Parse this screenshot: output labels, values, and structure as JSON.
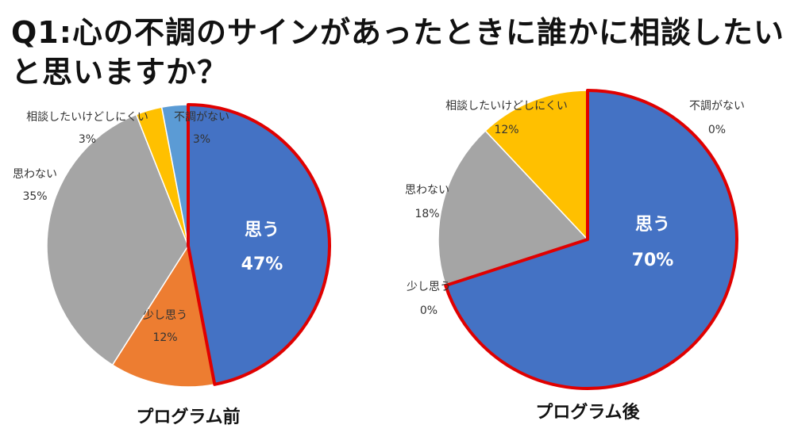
{
  "title": "Q1:心の不調のサインがあったときに誰かに相談したいと思いますか？",
  "colors": {
    "omou": "#4472C4",
    "sukoshi": "#ED7D31",
    "omowanai": "#A5A5A5",
    "soudan": "#FFC000",
    "fuchou": "#5B9BD5",
    "highlight": "#E00000"
  },
  "chart_data": [
    {
      "type": "pie",
      "title": "プログラム前",
      "slices": [
        {
          "label": "思う",
          "value": 47,
          "display": "47%",
          "color": "#4472C4",
          "highlight": true
        },
        {
          "label": "少し思う",
          "value": 12,
          "display": "12%",
          "color": "#ED7D31",
          "highlight": false
        },
        {
          "label": "思わない",
          "value": 35,
          "display": "35%",
          "color": "#A5A5A5",
          "highlight": false
        },
        {
          "label": "相談したいけどしにくい",
          "value": 3,
          "display": "3%",
          "color": "#FFC000",
          "highlight": false
        },
        {
          "label": "不調がない",
          "value": 3,
          "display": "3%",
          "color": "#5B9BD5",
          "highlight": false
        }
      ]
    },
    {
      "type": "pie",
      "title": "プログラム後",
      "slices": [
        {
          "label": "思う",
          "value": 70,
          "display": "70%",
          "color": "#4472C4",
          "highlight": true
        },
        {
          "label": "少し思う",
          "value": 0,
          "display": "0%",
          "color": "#ED7D31",
          "highlight": true
        },
        {
          "label": "思わない",
          "value": 18,
          "display": "18%",
          "color": "#A5A5A5",
          "highlight": false
        },
        {
          "label": "相談したいけどしにくい",
          "value": 12,
          "display": "12%",
          "color": "#FFC000",
          "highlight": false
        },
        {
          "label": "不調がない",
          "value": 0,
          "display": "0%",
          "color": "#5B9BD5",
          "highlight": false
        }
      ]
    }
  ]
}
